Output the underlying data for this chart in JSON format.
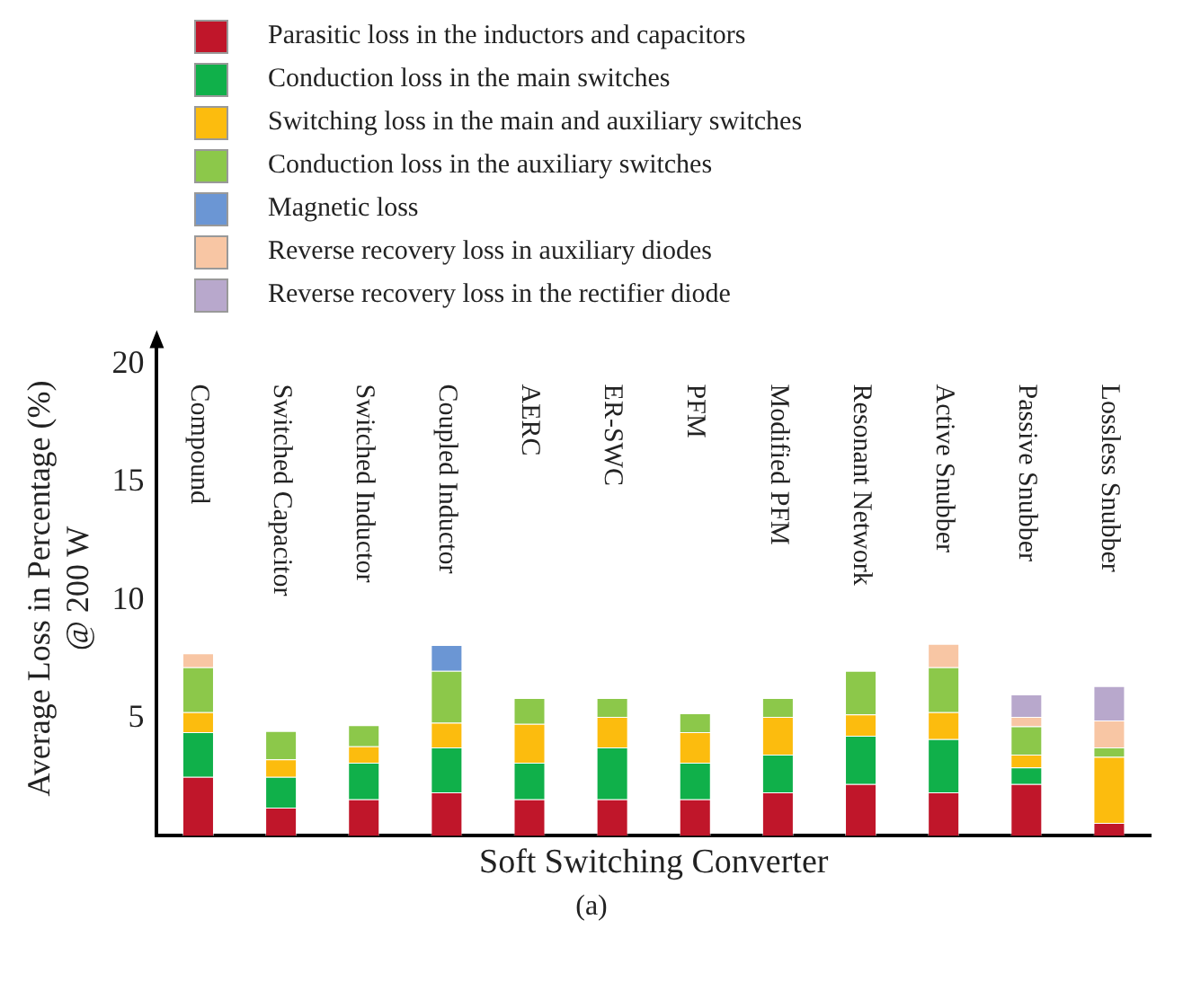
{
  "chart_data": {
    "type": "bar",
    "stacked": true,
    "xlabel": "Soft Switching Converter",
    "ylabel": "Average Loss in Percentage (%)\n@ 200 W",
    "categories": [
      "Compound",
      "Switched Capacitor",
      "Switched Inductor",
      "Coupled Inductor",
      "AERC",
      "ER-SWC",
      "PFM",
      "Modified PFM",
      "Resonant Network",
      "Active Snubber",
      "Passive Snubber",
      "Lossless Snubber"
    ],
    "series": [
      {
        "name": "Parasitic loss in the inductors and capacitors",
        "color": "#c0162a",
        "values": [
          2.5,
          1.2,
          1.55,
          1.85,
          1.55,
          1.55,
          1.55,
          1.85,
          2.2,
          1.85,
          2.2,
          0.55
        ]
      },
      {
        "name": "Conduction loss in the main switches",
        "color": "#10b04a",
        "values": [
          1.9,
          1.3,
          1.55,
          1.9,
          1.55,
          2.2,
          1.55,
          1.6,
          2.05,
          2.25,
          0.7,
          null
        ]
      },
      {
        "name": "Switching loss in the main and auxiliary switches",
        "color": "#fcbc0e",
        "values": [
          0.85,
          0.75,
          0.7,
          1.05,
          1.65,
          1.3,
          1.3,
          1.6,
          0.9,
          1.15,
          0.55,
          2.8
        ]
      },
      {
        "name": "Conduction loss in the auxiliary switches",
        "color": "#8cc84a",
        "values": [
          1.9,
          1.2,
          0.9,
          2.2,
          1.1,
          0.8,
          0.8,
          0.8,
          1.85,
          1.9,
          1.2,
          0.4
        ]
      },
      {
        "name": "Magnetic loss",
        "color": "#6b96d4",
        "values": [
          null,
          null,
          null,
          1.1,
          null,
          null,
          null,
          null,
          null,
          null,
          null,
          null
        ]
      },
      {
        "name": "Reverse recovery loss in auxiliary diodes",
        "color": "#f8c6a4",
        "values": [
          0.6,
          null,
          null,
          null,
          null,
          null,
          null,
          null,
          null,
          1.0,
          0.4,
          1.15
        ]
      },
      {
        "name": "Reverse recovery loss in the rectifier diode",
        "color": "#b8a8cc",
        "values": [
          null,
          null,
          null,
          null,
          null,
          null,
          null,
          null,
          null,
          null,
          0.95,
          1.45
        ]
      }
    ],
    "ylim": [
      0,
      21
    ],
    "yticks": [
      5,
      10,
      15,
      20
    ],
    "grid": false,
    "legend": "top",
    "tick_labels": "y",
    "annotations": [
      "(a)"
    ]
  }
}
